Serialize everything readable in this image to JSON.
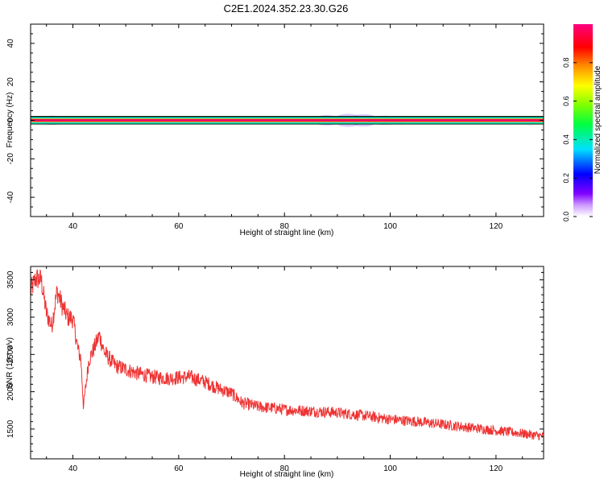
{
  "title": "C2E1.2024.352.23.30.G26",
  "chart_data": [
    {
      "type": "heatmap",
      "xlabel": "Height of straight line (km)",
      "ylabel": "Frequency (Hz)",
      "xlim": [
        32,
        129
      ],
      "ylim": [
        -50,
        50
      ],
      "xticks": [
        "40",
        "60",
        "80",
        "100",
        "120"
      ],
      "yticks": [
        "40",
        "20",
        "0",
        "-20",
        "-40"
      ],
      "colorbar": {
        "label": "Normalized spectral amplitude",
        "range": [
          0,
          1
        ],
        "ticks": [
          "0.0",
          "0.2",
          "0.4",
          "0.6",
          "0.8"
        ]
      },
      "band_center_hz": 0,
      "band_halfwidth_hz": 1.2,
      "line_color": "#e8006e",
      "grid": false
    },
    {
      "type": "line",
      "xlabel": "Height of straight line (km)",
      "ylabel": "SNR (10 * v/v)",
      "xlim": [
        32,
        129
      ],
      "ylim": [
        1100,
        3680
      ],
      "xticks": [
        "40",
        "60",
        "80",
        "100",
        "120"
      ],
      "yticks": [
        "3500",
        "3000",
        "2500",
        "2000",
        "1500"
      ],
      "color": "#ee3333",
      "grid": false,
      "x": [
        32,
        33,
        34,
        35,
        36,
        37,
        38,
        39,
        40,
        41,
        41.5,
        42,
        43,
        44,
        45,
        46,
        48,
        50,
        52,
        55,
        58,
        62,
        65,
        68,
        70,
        72,
        75,
        78,
        80,
        85,
        90,
        95,
        100,
        105,
        110,
        115,
        120,
        125,
        129
      ],
      "y": [
        3350,
        3520,
        3500,
        3050,
        2880,
        3350,
        3150,
        3000,
        2980,
        2550,
        2450,
        1800,
        2420,
        2580,
        2760,
        2520,
        2350,
        2300,
        2250,
        2200,
        2180,
        2200,
        2130,
        2030,
        1980,
        1850,
        1800,
        1780,
        1760,
        1740,
        1720,
        1680,
        1630,
        1600,
        1560,
        1520,
        1480,
        1440,
        1400
      ]
    }
  ]
}
